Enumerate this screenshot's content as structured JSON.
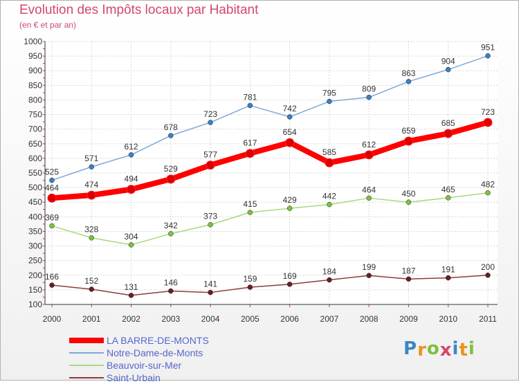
{
  "header": {
    "title": "Evolution des Impôts locaux par Habitant",
    "subtitle": "(en € et par an)"
  },
  "logo": {
    "text": "Proxiti",
    "colors": [
      "#3a87c8",
      "#e8941e",
      "#7fbf3f",
      "#d2486a",
      "#3a87c8",
      "#e8941e",
      "#7fbf3f"
    ]
  },
  "chart_data": {
    "type": "line",
    "categories": [
      "2000",
      "2001",
      "2002",
      "2003",
      "2004",
      "2005",
      "2006",
      "2007",
      "2008",
      "2009",
      "2010",
      "2011"
    ],
    "ylim": [
      100,
      1000
    ],
    "yticks": [
      "100",
      "150",
      "200",
      "250",
      "300",
      "350",
      "400",
      "450",
      "500",
      "550",
      "600",
      "650",
      "700",
      "750",
      "800",
      "850",
      "900",
      "950",
      "1000"
    ],
    "grid": true,
    "legend_position": "bottom-left",
    "series": [
      {
        "name": "LA BARRE-DE-MONTS",
        "values": [
          464,
          474,
          494,
          529,
          577,
          617,
          654,
          585,
          612,
          659,
          685,
          723
        ],
        "labels": [
          "464",
          "474",
          "494",
          "529",
          "577",
          "617",
          "654",
          "585",
          "612",
          "659",
          "685",
          "723"
        ],
        "color": "#ff0000",
        "marker_color": "#dd0000",
        "emphasis": true
      },
      {
        "name": "Notre-Dame-de-Monts",
        "values": [
          525,
          571,
          612,
          678,
          723,
          781,
          742,
          795,
          809,
          863,
          904,
          951
        ],
        "labels": [
          "525",
          "571",
          "612",
          "678",
          "723",
          "781",
          "742",
          "795",
          "809",
          "863",
          "904",
          "951"
        ],
        "color": "#7fa8d4",
        "marker_color": "#3a7fc4"
      },
      {
        "name": "Beauvoir-sur-Mer",
        "values": [
          369,
          328,
          304,
          342,
          373,
          415,
          429,
          442,
          464,
          450,
          465,
          482
        ],
        "labels": [
          "369",
          "328",
          "304",
          "342",
          "373",
          "415",
          "429",
          "442",
          "464",
          "450",
          "465",
          "482"
        ],
        "color": "#a8d880",
        "marker_color": "#7fc040"
      },
      {
        "name": "Saint-Urbain",
        "values": [
          166,
          152,
          131,
          146,
          141,
          159,
          169,
          184,
          199,
          187,
          191,
          200
        ],
        "labels": [
          "166",
          "152",
          "131",
          "146",
          "141",
          "159",
          "169",
          "184",
          "199",
          "187",
          "191",
          "200"
        ],
        "color": "#8c3b3b",
        "marker_color": "#6a1f1f"
      }
    ]
  }
}
